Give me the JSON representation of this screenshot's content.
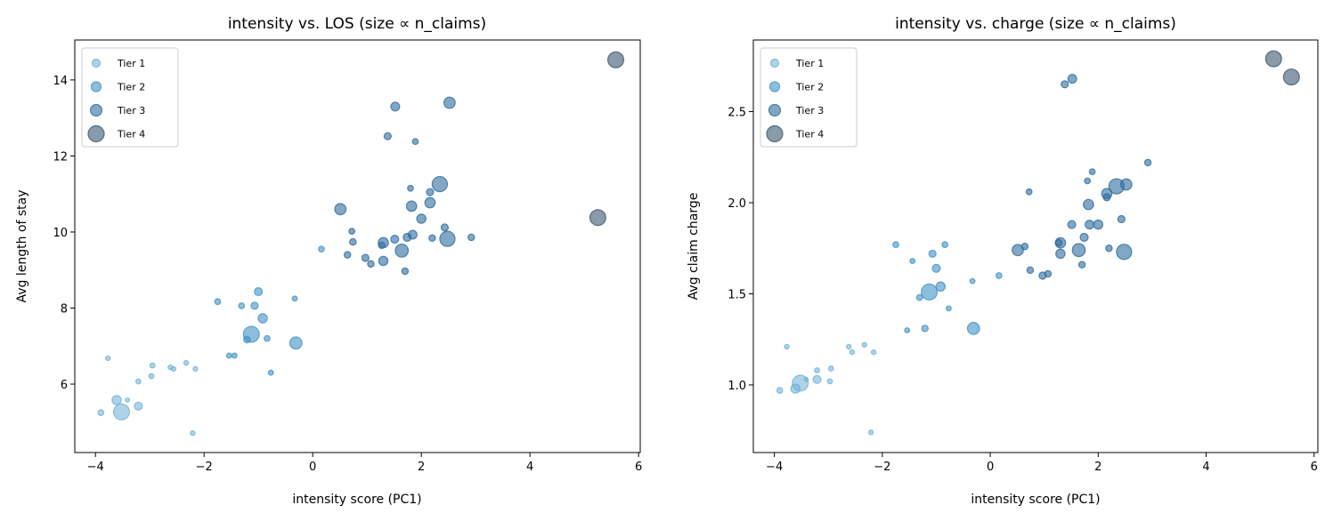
{
  "chart_data": [
    {
      "type": "scatter",
      "title": "intensity vs. LOS (size ∝ n_claims)",
      "xlabel": "intensity score (PC1)",
      "ylabel": "Avg length of stay",
      "xlim": [
        -4.38,
        6.03
      ],
      "ylim": [
        4.2,
        15.05
      ],
      "xticks": [
        -4,
        -2,
        0,
        2,
        4,
        6
      ],
      "yticks": [
        6,
        8,
        10,
        12,
        14
      ],
      "ykey": "los",
      "legend": "top-left",
      "grid": false
    },
    {
      "type": "scatter",
      "title": "intensity vs. charge (size ∝ n_claims)",
      "xlabel": "intensity score (PC1)",
      "ylabel": "Avg claim charge",
      "xlim": [
        -4.39,
        6.07
      ],
      "ylim": [
        0.629,
        2.893
      ],
      "xticks": [
        -4,
        -2,
        0,
        2,
        4,
        6
      ],
      "yticks": [
        1.0,
        1.5,
        2.0,
        2.5
      ],
      "ykey": "charge",
      "legend": "top-left",
      "grid": false
    }
  ],
  "series": [
    {
      "name": "Tier 1",
      "color": "#6baed6",
      "alpha": 0.55
    },
    {
      "name": "Tier 2",
      "color": "#4292c6",
      "alpha": 0.6
    },
    {
      "name": "Tier 3",
      "color": "#2f6c9e",
      "alpha": 0.6
    },
    {
      "name": "Tier 4",
      "color": "#3b5670",
      "alpha": 0.6
    }
  ],
  "points": [
    {
      "tier": 1,
      "x": -3.77,
      "los": 6.68,
      "charge": 1.21,
      "n": 5
    },
    {
      "tier": 1,
      "x": -3.9,
      "los": 5.25,
      "charge": 0.97,
      "n": 8
    },
    {
      "tier": 1,
      "x": -3.52,
      "los": 5.27,
      "charge": 1.01,
      "n": 60
    },
    {
      "tier": 1,
      "x": -3.61,
      "los": 5.58,
      "charge": 0.98,
      "n": 20
    },
    {
      "tier": 1,
      "x": -3.41,
      "los": 5.58,
      "charge": 1.03,
      "n": 4
    },
    {
      "tier": 1,
      "x": -3.21,
      "los": 5.42,
      "charge": 1.03,
      "n": 15
    },
    {
      "tier": 1,
      "x": -3.21,
      "los": 6.07,
      "charge": 1.08,
      "n": 6
    },
    {
      "tier": 1,
      "x": -2.97,
      "los": 6.21,
      "charge": 1.02,
      "n": 6
    },
    {
      "tier": 1,
      "x": -2.95,
      "los": 6.49,
      "charge": 1.09,
      "n": 6
    },
    {
      "tier": 1,
      "x": -2.62,
      "los": 6.44,
      "charge": 1.21,
      "n": 5
    },
    {
      "tier": 1,
      "x": -2.56,
      "los": 6.4,
      "charge": 1.18,
      "n": 5
    },
    {
      "tier": 1,
      "x": -2.33,
      "los": 6.56,
      "charge": 1.22,
      "n": 5
    },
    {
      "tier": 1,
      "x": -2.16,
      "los": 6.4,
      "charge": 1.18,
      "n": 5
    },
    {
      "tier": 1,
      "x": -2.21,
      "los": 4.71,
      "charge": 0.74,
      "n": 5
    },
    {
      "tier": 2,
      "x": -1.75,
      "los": 8.17,
      "charge": 1.77,
      "n": 8
    },
    {
      "tier": 2,
      "x": -1.31,
      "los": 8.06,
      "charge": 1.48,
      "n": 8
    },
    {
      "tier": 2,
      "x": -1.0,
      "los": 8.43,
      "charge": 1.64,
      "n": 15
    },
    {
      "tier": 2,
      "x": -1.07,
      "los": 8.06,
      "charge": 1.72,
      "n": 12
    },
    {
      "tier": 2,
      "x": -0.92,
      "los": 7.73,
      "charge": 1.54,
      "n": 20
    },
    {
      "tier": 2,
      "x": -1.13,
      "los": 7.31,
      "charge": 1.51,
      "n": 60
    },
    {
      "tier": 2,
      "x": -1.21,
      "los": 7.17,
      "charge": 1.31,
      "n": 10
    },
    {
      "tier": 2,
      "x": -0.84,
      "los": 7.2,
      "charge": 1.77,
      "n": 8
    },
    {
      "tier": 2,
      "x": -0.31,
      "los": 7.08,
      "charge": 1.31,
      "n": 35
    },
    {
      "tier": 2,
      "x": -0.33,
      "los": 8.25,
      "charge": 1.57,
      "n": 6
    },
    {
      "tier": 2,
      "x": -1.54,
      "los": 6.75,
      "charge": 1.3,
      "n": 6
    },
    {
      "tier": 2,
      "x": -1.44,
      "los": 6.75,
      "charge": 1.68,
      "n": 6
    },
    {
      "tier": 2,
      "x": -0.77,
      "los": 6.3,
      "charge": 1.42,
      "n": 6
    },
    {
      "tier": 2,
      "x": 0.16,
      "los": 9.55,
      "charge": 1.6,
      "n": 8
    },
    {
      "tier": 3,
      "x": 0.51,
      "los": 10.6,
      "charge": 1.74,
      "n": 30
    },
    {
      "tier": 3,
      "x": 0.72,
      "los": 10.02,
      "charge": 2.06,
      "n": 8
    },
    {
      "tier": 3,
      "x": 0.74,
      "los": 9.74,
      "charge": 1.63,
      "n": 10
    },
    {
      "tier": 3,
      "x": 0.64,
      "los": 9.4,
      "charge": 1.76,
      "n": 10
    },
    {
      "tier": 3,
      "x": 0.97,
      "los": 9.32,
      "charge": 1.6,
      "n": 12
    },
    {
      "tier": 3,
      "x": 1.07,
      "los": 9.16,
      "charge": 1.61,
      "n": 10
    },
    {
      "tier": 3,
      "x": 1.3,
      "los": 9.24,
      "charge": 1.72,
      "n": 20
    },
    {
      "tier": 3,
      "x": 1.3,
      "los": 9.72,
      "charge": 1.78,
      "n": 25
    },
    {
      "tier": 3,
      "x": 1.27,
      "los": 9.65,
      "charge": 1.78,
      "n": 10
    },
    {
      "tier": 3,
      "x": 1.51,
      "los": 9.81,
      "charge": 1.88,
      "n": 15
    },
    {
      "tier": 3,
      "x": 1.64,
      "los": 9.51,
      "charge": 1.74,
      "n": 40
    },
    {
      "tier": 3,
      "x": 1.74,
      "los": 9.86,
      "charge": 1.81,
      "n": 15
    },
    {
      "tier": 3,
      "x": 1.84,
      "los": 9.93,
      "charge": 1.88,
      "n": 18
    },
    {
      "tier": 3,
      "x": 1.7,
      "los": 8.97,
      "charge": 1.66,
      "n": 10
    },
    {
      "tier": 3,
      "x": 2.0,
      "los": 10.35,
      "charge": 1.88,
      "n": 20
    },
    {
      "tier": 3,
      "x": 1.82,
      "los": 10.68,
      "charge": 1.99,
      "n": 25
    },
    {
      "tier": 3,
      "x": 1.8,
      "los": 11.15,
      "charge": 2.12,
      "n": 8
    },
    {
      "tier": 3,
      "x": 2.16,
      "los": 10.77,
      "charge": 2.05,
      "n": 25
    },
    {
      "tier": 3,
      "x": 2.16,
      "los": 11.05,
      "charge": 2.03,
      "n": 12
    },
    {
      "tier": 3,
      "x": 2.34,
      "los": 11.26,
      "charge": 2.09,
      "n": 55
    },
    {
      "tier": 3,
      "x": 2.2,
      "los": 9.84,
      "charge": 1.75,
      "n": 10
    },
    {
      "tier": 3,
      "x": 2.43,
      "los": 10.12,
      "charge": 1.91,
      "n": 12
    },
    {
      "tier": 3,
      "x": 2.48,
      "los": 9.82,
      "charge": 1.73,
      "n": 55
    },
    {
      "tier": 3,
      "x": 2.92,
      "los": 9.86,
      "charge": 2.22,
      "n": 10
    },
    {
      "tier": 3,
      "x": 1.38,
      "los": 12.52,
      "charge": 2.65,
      "n": 12
    },
    {
      "tier": 3,
      "x": 1.89,
      "los": 12.38,
      "charge": 2.17,
      "n": 8
    },
    {
      "tier": 3,
      "x": 1.52,
      "los": 13.3,
      "charge": 2.68,
      "n": 18
    },
    {
      "tier": 3,
      "x": 2.52,
      "los": 13.4,
      "charge": 2.1,
      "n": 30
    },
    {
      "tier": 4,
      "x": 5.25,
      "los": 10.38,
      "charge": 2.79,
      "n": 60
    },
    {
      "tier": 4,
      "x": 5.58,
      "los": 14.53,
      "charge": 2.69,
      "n": 60
    }
  ]
}
